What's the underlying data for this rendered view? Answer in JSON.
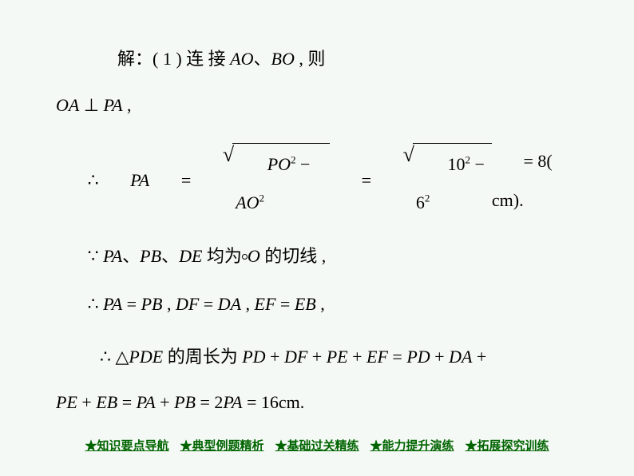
{
  "solution": {
    "line1_prefix": "解：( 1 )  连 接 ",
    "line1_ao": "AO",
    "line1_sep": "、",
    "line1_bo": "BO",
    "line1_suffix": " , 则",
    "line2_oa": "OA",
    "line2_perp": " ⊥ ",
    "line2_pa": "PA",
    "line2_comma": " ,",
    "line3_therefore": "∴ ",
    "line3_pa": "PA",
    "line3_eq1": " = ",
    "sqrt1": {
      "po": "PO",
      "sup": "2",
      "minus": " − ",
      "ao": "AO"
    },
    "line3_eq2": "  =  ",
    "sqrt2": {
      "a": "10",
      "sup": "2",
      "minus": " − ",
      "b": "6"
    },
    "line3_result": "  = 8( cm).",
    "line4_because": "∵ ",
    "line4_pa": "PA",
    "line4_s1": "、",
    "line4_pb": "PB",
    "line4_s2": "、",
    "line4_de": "DE",
    "line4_mid": " 均为",
    "line4_o": "O",
    "line4_suffix": " 的切线 ,",
    "line5_therefore": "∴ ",
    "line5_pa": "PA",
    "line5_eq1": " = ",
    "line5_pb": "PB",
    "line5_c1": " , ",
    "line5_df": "DF",
    "line5_eq2": " = ",
    "line5_da": "DA",
    "line5_c2": " , ",
    "line5_ef": "EF",
    "line5_eq3": " = ",
    "line5_eb": "EB",
    "line5_c3": " ,",
    "line6_therefore": "∴ ",
    "line6_tri": "△",
    "line6_pde": "PDE",
    "line6_txt": " 的周长为 ",
    "line6_pd": "PD",
    "line6_p1": " + ",
    "line6_df": "DF",
    "line6_p2": " + ",
    "line6_pe": "PE",
    "line6_p3": " + ",
    "line6_ef": "EF",
    "line6_eq": " = ",
    "line6_pd2": "PD",
    "line6_p4": " + ",
    "line6_da": "DA",
    "line6_p5": " + ",
    "line7_pe": "PE",
    "line7_p1": " + ",
    "line7_eb": "EB",
    "line7_eq1": " = ",
    "line7_pa": "PA",
    "line7_p2": " + ",
    "line7_pb": "PB",
    "line7_eq2": " = ",
    "line7_2": "2",
    "line7_pa2": "PA",
    "line7_eq3": " = ",
    "line7_result": "16cm."
  },
  "nav": {
    "n1": "★知识要点导航",
    "n2": "★典型例题精析",
    "n3": "★基础过关精练",
    "n4": "★能力提升演练",
    "n5": "★拓展探究训练"
  },
  "colors": {
    "bg": "#f5f9f5",
    "text": "#000000",
    "nav": "#006400"
  }
}
